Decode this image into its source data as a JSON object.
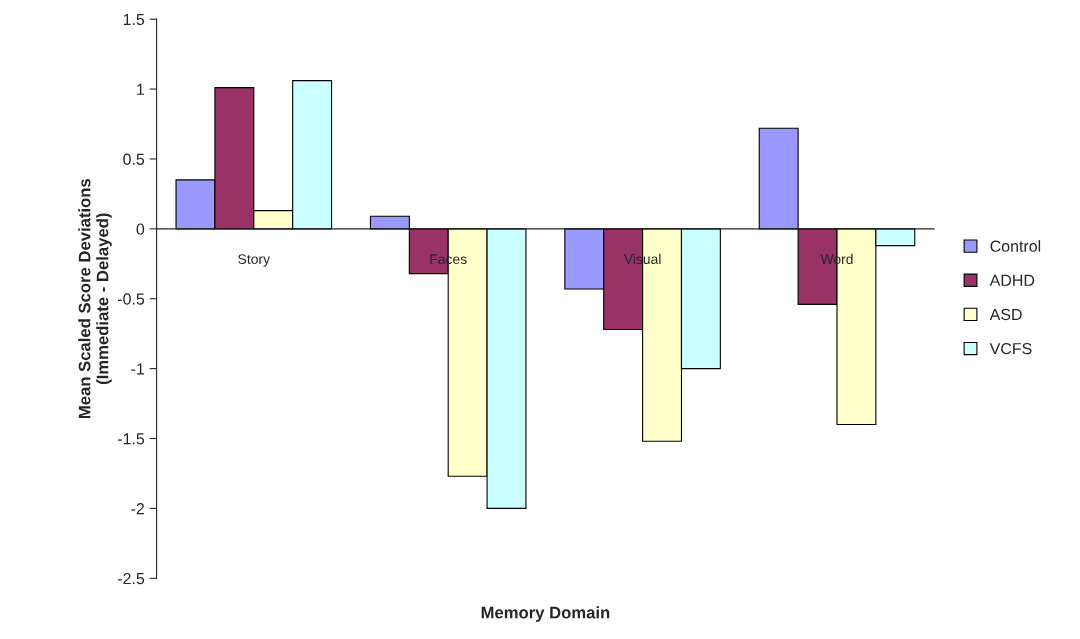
{
  "chart_data": {
    "type": "bar",
    "xlabel": "Memory Domain",
    "ylabel": "Mean Scaled Score Deviations\n(Immediate - Delayed)",
    "categories": [
      "Story",
      "Faces",
      "Visual",
      "Word"
    ],
    "series": [
      {
        "name": "Control",
        "color": "#9999ff",
        "values": [
          0.35,
          0.09,
          -0.43,
          0.72
        ]
      },
      {
        "name": "ADHD",
        "color": "#993366",
        "values": [
          1.01,
          -0.32,
          -0.72,
          -0.54
        ]
      },
      {
        "name": "ASD",
        "color": "#ffffcc",
        "values": [
          0.13,
          -1.77,
          -1.52,
          -1.4
        ]
      },
      {
        "name": "VCFS",
        "color": "#ccffff",
        "values": [
          1.06,
          -2.0,
          -1.0,
          -0.12
        ]
      }
    ],
    "ylim": [
      -2.5,
      1.5
    ],
    "yticks": [
      -2.5,
      -2,
      -1.5,
      -1,
      -0.5,
      0,
      0.5,
      1,
      1.5
    ],
    "grid": false,
    "legend": "right"
  }
}
